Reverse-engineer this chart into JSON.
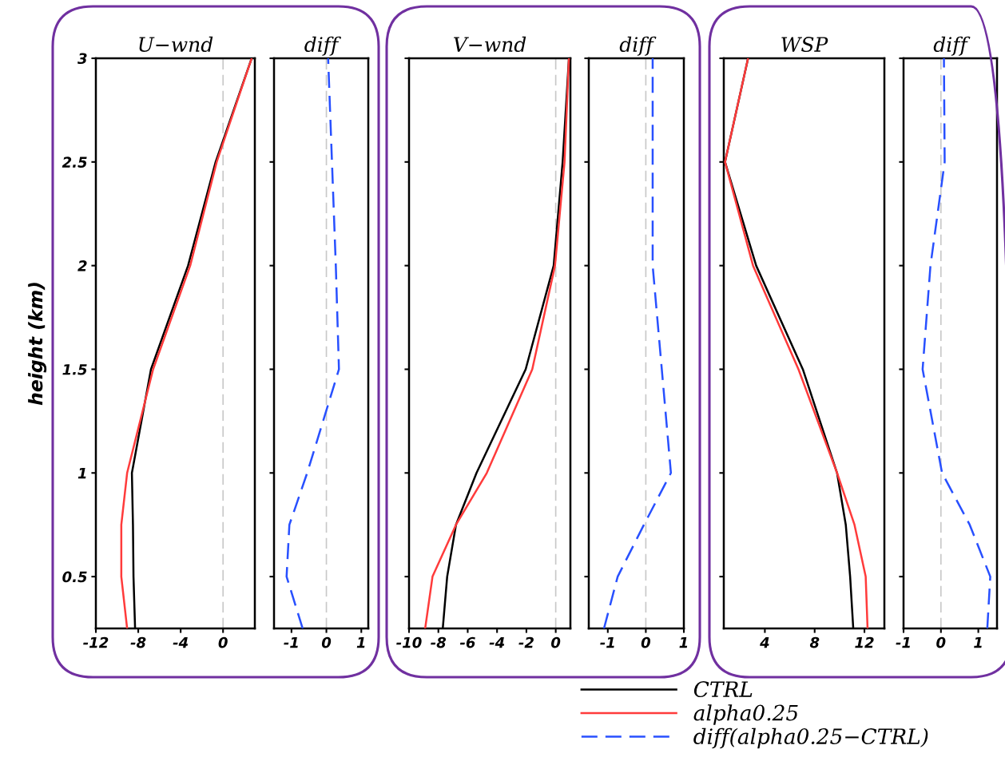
{
  "chart_data": [
    {
      "type": "line",
      "title": "U−wnd",
      "ylabel": "height (km)",
      "xlim": [
        -12,
        3
      ],
      "xticks": [
        -12,
        -8,
        -4,
        0
      ],
      "ylim": [
        0.25,
        3
      ],
      "yticks": [
        0.5,
        1,
        1.5,
        2,
        2.5,
        3
      ],
      "grid": false,
      "ref_lines": [
        {
          "axis": "x",
          "value": 0,
          "color": "#c8c8c8",
          "line_style": "dashed"
        }
      ],
      "series": [
        {
          "color": "#000000",
          "x": [
            -8.3,
            -8.45,
            -8.5,
            -8.6,
            -6.8,
            -3.3,
            -0.7,
            2.7
          ],
          "values": [
            0.25,
            0.5,
            0.75,
            1,
            1.5,
            2,
            2.5,
            3
          ]
        },
        {
          "color": "#ff3b3b",
          "x": [
            -9.05,
            -9.6,
            -9.6,
            -9.05,
            -6.6,
            -3.1,
            -0.6,
            2.7
          ],
          "values": [
            0.25,
            0.5,
            0.75,
            1,
            1.5,
            2,
            2.5,
            3
          ]
        }
      ]
    },
    {
      "type": "line",
      "title": "diff",
      "xlim": [
        -1.5,
        1.2
      ],
      "xticks": [
        -1,
        0,
        1
      ],
      "ylim": [
        0.25,
        3
      ],
      "yticks": [
        0.5,
        1,
        1.5,
        2,
        2.5,
        3
      ],
      "tick_labels": "x",
      "grid": false,
      "line_style": "dashed",
      "ref_lines": [
        {
          "axis": "x",
          "value": 0,
          "color": "#c8c8c8",
          "line_style": "dashed"
        }
      ],
      "series": [
        {
          "color": "#2850ff",
          "x": [
            -0.68,
            -1.14,
            -1.06,
            -0.55,
            0.36,
            0.27,
            0.16,
            0.05
          ],
          "values": [
            0.25,
            0.5,
            0.75,
            1,
            1.5,
            2,
            2.5,
            3
          ]
        }
      ]
    },
    {
      "type": "line",
      "title": "V−wnd",
      "xlim": [
        -10,
        1
      ],
      "xticks": [
        -10,
        -8,
        -6,
        -4,
        -2,
        0
      ],
      "ylim": [
        0.25,
        3
      ],
      "yticks": [
        0.5,
        1,
        1.5,
        2,
        2.5,
        3
      ],
      "tick_labels": "x",
      "grid": false,
      "legend": "bottom",
      "ref_lines": [
        {
          "axis": "x",
          "value": 0,
          "color": "#c8c8c8",
          "line_style": "dashed"
        }
      ],
      "series": [
        {
          "name": "CTRL",
          "color": "#000000",
          "x": [
            -7.7,
            -7.4,
            -6.8,
            -5.4,
            -2.05,
            -0.14,
            0.47,
            0.9
          ],
          "values": [
            0.25,
            0.5,
            0.75,
            1,
            1.5,
            2,
            2.5,
            3
          ]
        },
        {
          "name": "alpha0.25",
          "color": "#ff3b3b",
          "x": [
            -8.9,
            -8.4,
            -6.8,
            -4.7,
            -1.6,
            -0.05,
            0.6,
            0.9
          ],
          "values": [
            0.25,
            0.5,
            0.75,
            1,
            1.5,
            2,
            2.5,
            3
          ]
        }
      ]
    },
    {
      "type": "line",
      "title": "diff",
      "xlim": [
        -1.5,
        1
      ],
      "xticks": [
        -1,
        0,
        1
      ],
      "ylim": [
        0.25,
        3
      ],
      "yticks": [
        0.5,
        1,
        1.5,
        2,
        2.5,
        3
      ],
      "tick_labels": "x",
      "grid": false,
      "line_style": "dashed",
      "legend": "bottom",
      "ref_lines": [
        {
          "axis": "x",
          "value": 0,
          "color": "#c8c8c8",
          "line_style": "dashed"
        }
      ],
      "series": [
        {
          "name": "diff(alpha0.25−CTRL)",
          "color": "#2850ff",
          "x": [
            -1.1,
            -0.74,
            -0.05,
            0.66,
            0.42,
            0.18,
            0.18,
            0.18
          ],
          "values": [
            0.25,
            0.5,
            0.75,
            1,
            1.5,
            2,
            2.5,
            3
          ]
        }
      ]
    },
    {
      "type": "line",
      "title": "WSP",
      "xlim": [
        0.7,
        13.6
      ],
      "xticks": [
        4,
        8,
        12
      ],
      "ylim": [
        0.25,
        3
      ],
      "yticks": [
        0.5,
        1,
        1.5,
        2,
        2.5,
        3
      ],
      "tick_labels": "x",
      "grid": false,
      "series": [
        {
          "color": "#000000",
          "x": [
            11.1,
            10.85,
            10.5,
            9.8,
            7.05,
            3.3,
            0.8,
            2.65
          ],
          "values": [
            0.25,
            0.5,
            0.75,
            1,
            1.5,
            2,
            2.5,
            3
          ]
        },
        {
          "color": "#ff3b3b",
          "x": [
            12.25,
            12.1,
            11.2,
            9.8,
            6.7,
            3.05,
            0.8,
            2.65
          ],
          "values": [
            0.25,
            0.5,
            0.75,
            1,
            1.5,
            2,
            2.5,
            3
          ]
        }
      ]
    },
    {
      "type": "line",
      "title": "diff",
      "xlim": [
        -1,
        1.5
      ],
      "xticks": [
        -1,
        0,
        1
      ],
      "ylim": [
        0.25,
        3
      ],
      "yticks": [
        0.5,
        1,
        1.5,
        2,
        2.5,
        3
      ],
      "tick_labels": "x",
      "grid": false,
      "line_style": "dashed",
      "ref_lines": [
        {
          "axis": "x",
          "value": 0,
          "color": "#c8c8c8",
          "line_style": "dashed"
        }
      ],
      "series": [
        {
          "color": "#2850ff",
          "x": [
            1.24,
            1.32,
            0.77,
            0.03,
            -0.49,
            -0.28,
            0.1,
            0.08
          ],
          "values": [
            0.25,
            0.5,
            0.75,
            1,
            1.5,
            2,
            2.5,
            3
          ]
        }
      ]
    }
  ]
}
